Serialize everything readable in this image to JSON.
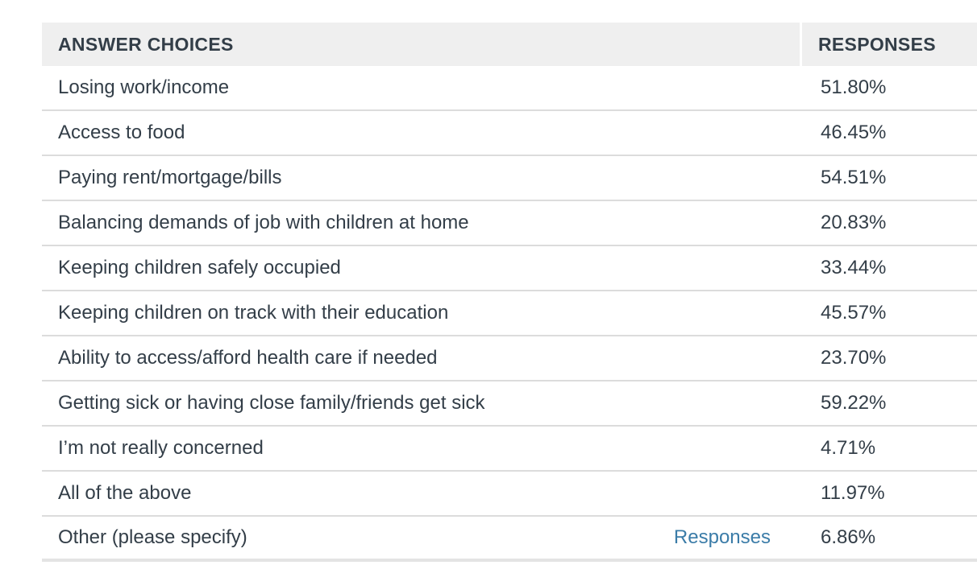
{
  "table": {
    "headers": {
      "choices": "ANSWER CHOICES",
      "responses": "RESPONSES"
    },
    "rows": [
      {
        "label": "Losing work/income",
        "value": "51.80%"
      },
      {
        "label": "Access to food",
        "value": "46.45%"
      },
      {
        "label": "Paying rent/mortgage/bills",
        "value": "54.51%"
      },
      {
        "label": "Balancing demands of job with children at home",
        "value": "20.83%"
      },
      {
        "label": "Keeping children safely occupied",
        "value": "33.44%"
      },
      {
        "label": "Keeping children on track with their education",
        "value": "45.57%"
      },
      {
        "label": "Ability to access/afford health care if needed",
        "value": "23.70%"
      },
      {
        "label": "Getting sick or having close family/friends get sick",
        "value": "59.22%"
      },
      {
        "label": "I’m not really concerned",
        "value": "4.71%"
      },
      {
        "label": "All of the above",
        "value": "11.97%"
      },
      {
        "label": "Other (please specify)",
        "value": "6.86%",
        "link": "Responses"
      }
    ]
  },
  "colors": {
    "text": "#333e48",
    "header_bg": "#efefef",
    "link": "#3b7ca8",
    "divider": "#dcdcdc"
  }
}
